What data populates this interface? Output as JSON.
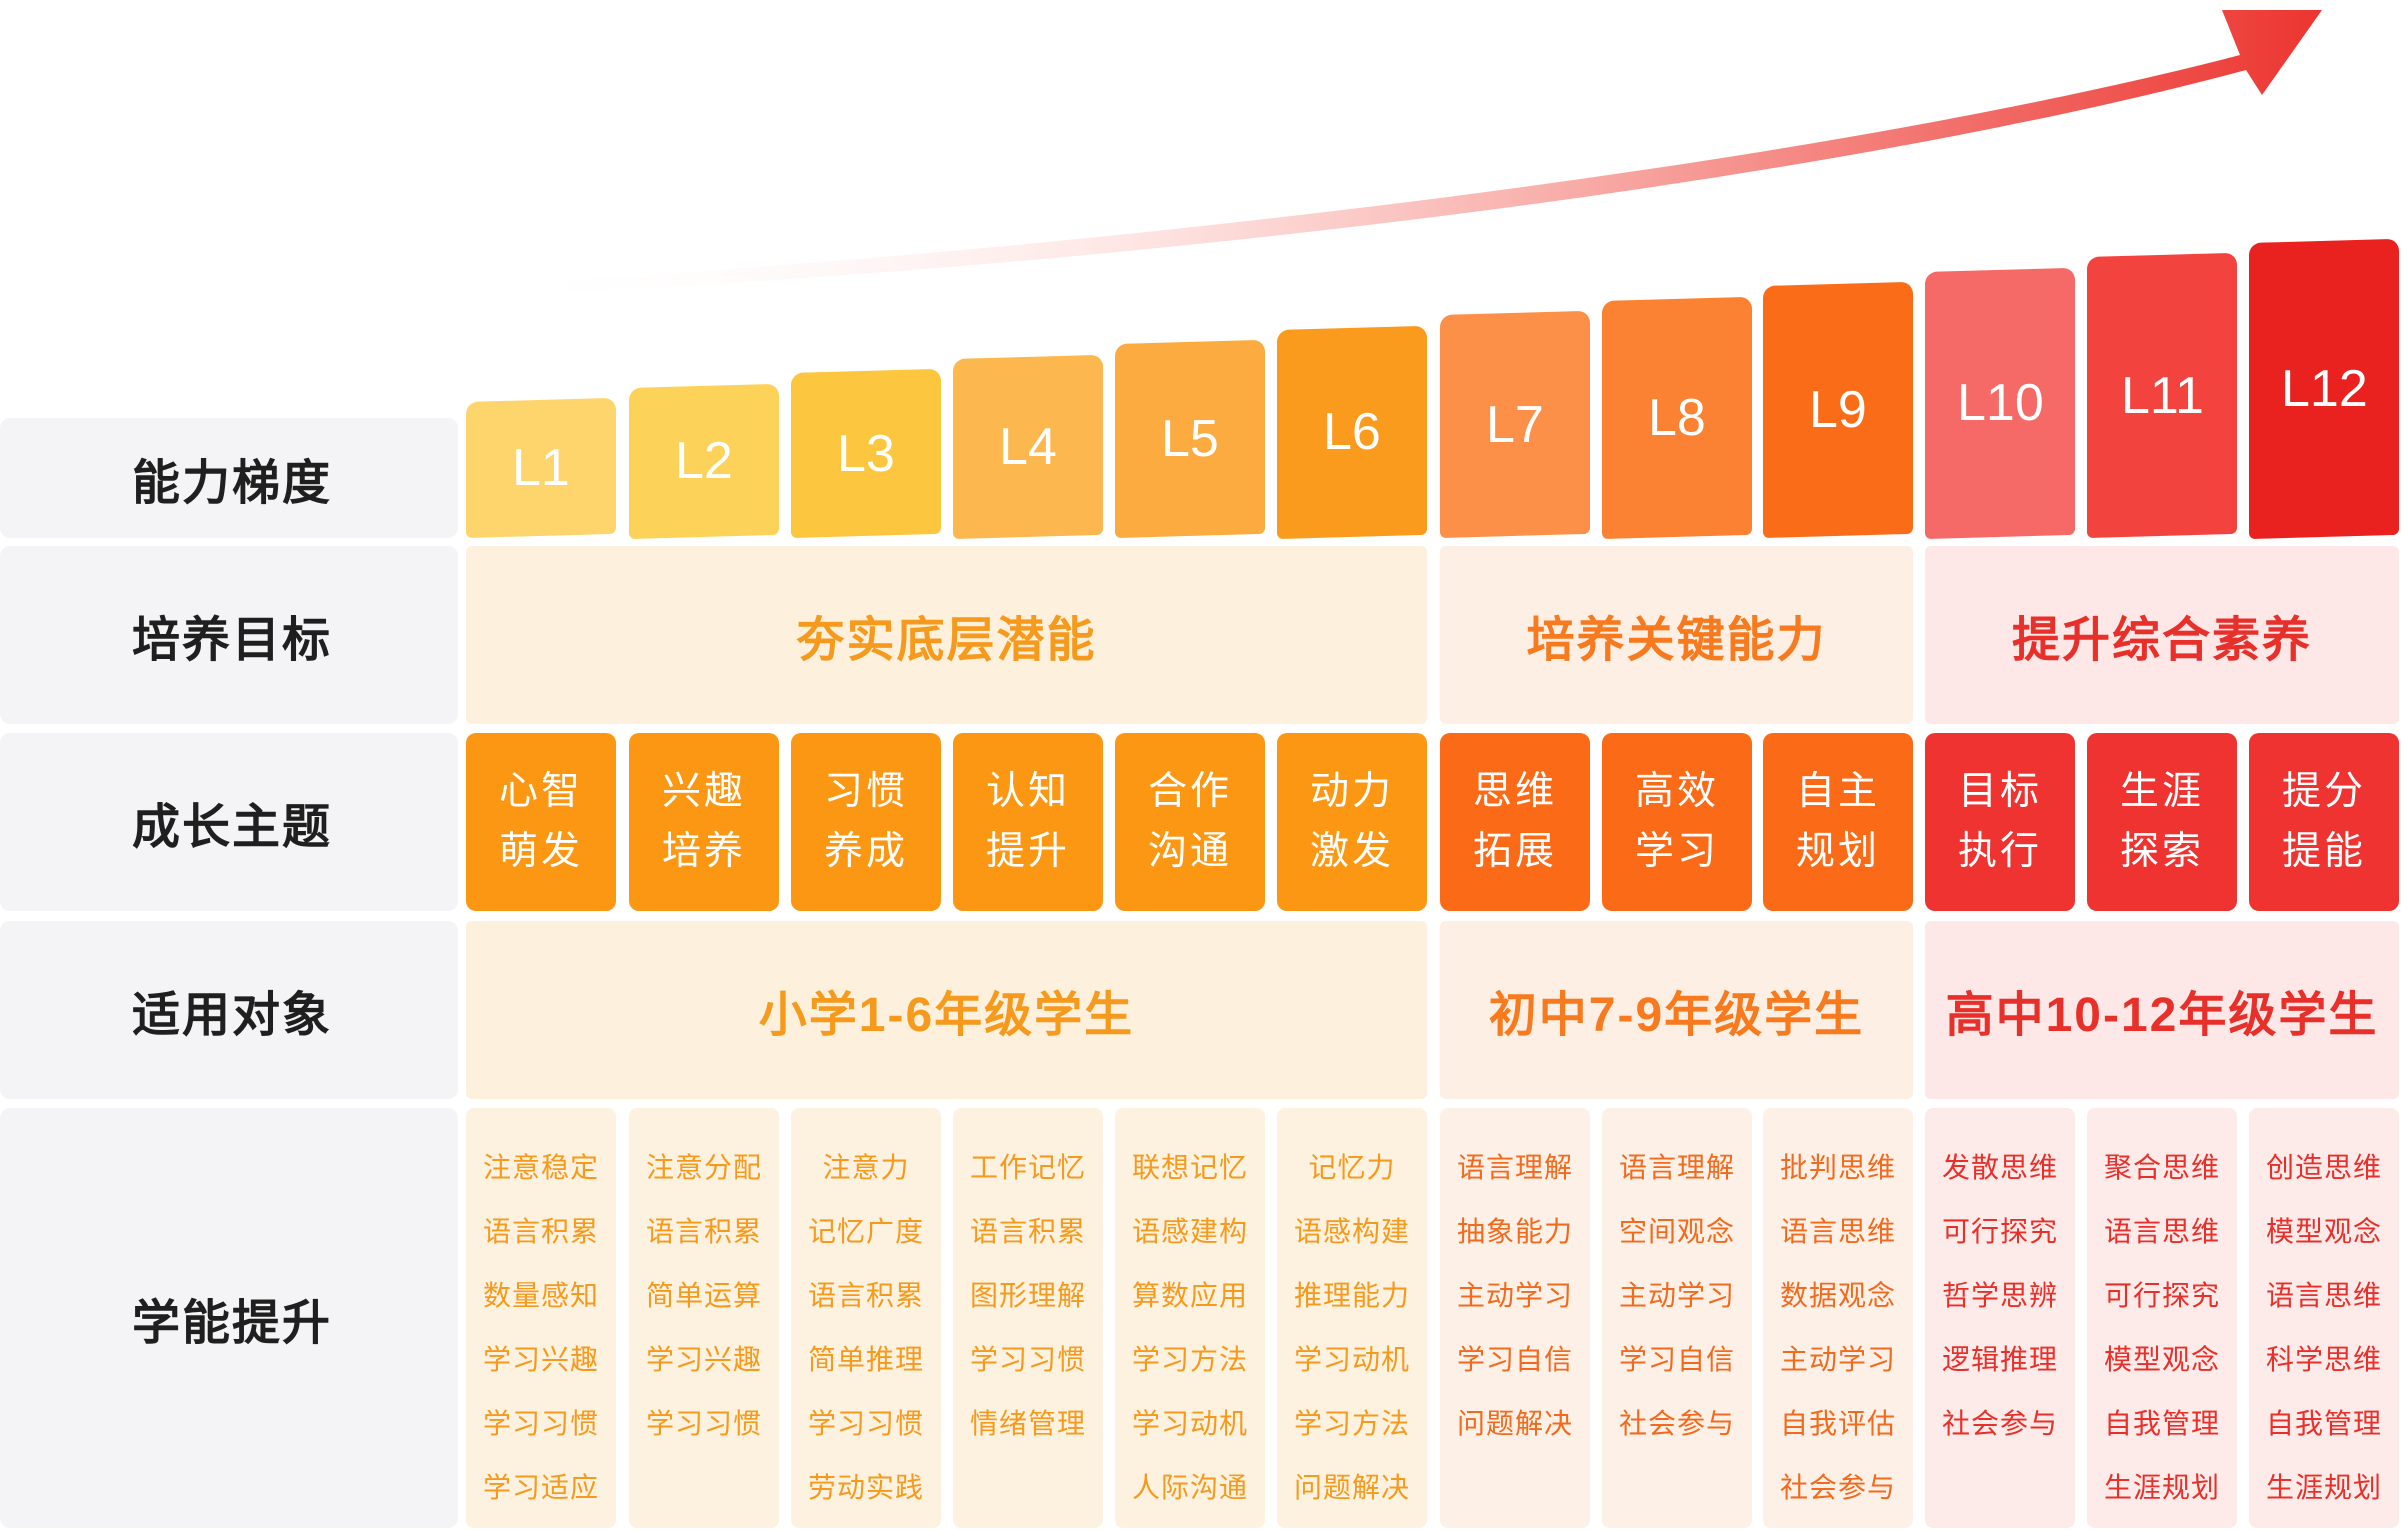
{
  "rows": {
    "ability": "能力梯度",
    "goal": "培养目标",
    "theme": "成长主题",
    "audience": "适用对象",
    "skills": "学能提升"
  },
  "levels": [
    {
      "label": "L1",
      "color": "#fdd56c"
    },
    {
      "label": "L2",
      "color": "#fdd259"
    },
    {
      "label": "L3",
      "color": "#fcc63e"
    },
    {
      "label": "L4",
      "color": "#fcb84e"
    },
    {
      "label": "L5",
      "color": "#fbab3f"
    },
    {
      "label": "L6",
      "color": "#fb9b1e"
    },
    {
      "label": "L7",
      "color": "#fc9049"
    },
    {
      "label": "L8",
      "color": "#fb8232"
    },
    {
      "label": "L9",
      "color": "#fb6c18"
    },
    {
      "label": "L10",
      "color": "#f56a66"
    },
    {
      "label": "L11",
      "color": "#f2433f"
    },
    {
      "label": "L12",
      "color": "#e9221f"
    }
  ],
  "goals": [
    {
      "label": "夯实底层潜能",
      "color": "#f59a1c",
      "bg": "#fdf0dd"
    },
    {
      "label": "培养关键能力",
      "color": "#f77a1f",
      "bg": "#fdefe3"
    },
    {
      "label": "提升综合素养",
      "color": "#e8302b",
      "bg": "#fde8e7"
    }
  ],
  "themes": [
    {
      "label": "心智\n萌发",
      "color": "#fb9712"
    },
    {
      "label": "兴趣\n培养",
      "color": "#fb9712"
    },
    {
      "label": "习惯\n养成",
      "color": "#fb9712"
    },
    {
      "label": "认知\n提升",
      "color": "#fb9712"
    },
    {
      "label": "合作\n沟通",
      "color": "#fb9712"
    },
    {
      "label": "动力\n激发",
      "color": "#fb9712"
    },
    {
      "label": "思维\n拓展",
      "color": "#fb6a16"
    },
    {
      "label": "高效\n学习",
      "color": "#fb6a16"
    },
    {
      "label": "自主\n规划",
      "color": "#fb6a16"
    },
    {
      "label": "目标\n执行",
      "color": "#ee3331"
    },
    {
      "label": "生涯\n探索",
      "color": "#ee3331"
    },
    {
      "label": "提分\n提能",
      "color": "#ee3331"
    }
  ],
  "audiences": [
    {
      "label": "小学1-6年级学生",
      "color": "#f59a1c",
      "bg": "#fdf0dd"
    },
    {
      "label": "初中7-9年级学生",
      "color": "#f77a1f",
      "bg": "#fdefe3"
    },
    {
      "label": "高中10-12年级学生",
      "color": "#e8302b",
      "bg": "#fde8e7"
    }
  ],
  "skills": [
    {
      "items": [
        "注意稳定",
        "语言积累",
        "数量感知",
        "学习兴趣",
        "学习习惯",
        "学习适应"
      ],
      "color": "#f59a1c",
      "bg": "#fdf1e0"
    },
    {
      "items": [
        "注意分配",
        "语言积累",
        "简单运算",
        "学习兴趣",
        "学习习惯"
      ],
      "color": "#f59a1c",
      "bg": "#fdf1e0"
    },
    {
      "items": [
        "注意力",
        "记忆广度",
        "语言积累",
        "简单推理",
        "学习习惯",
        "劳动实践"
      ],
      "color": "#f59a1c",
      "bg": "#fdf1e0"
    },
    {
      "items": [
        "工作记忆",
        "语言积累",
        "图形理解",
        "学习习惯",
        "情绪管理"
      ],
      "color": "#f59a1c",
      "bg": "#fdf1e0"
    },
    {
      "items": [
        "联想记忆",
        "语感建构",
        "算数应用",
        "学习方法",
        "学习动机",
        "人际沟通"
      ],
      "color": "#f59a1c",
      "bg": "#fdf1e0"
    },
    {
      "items": [
        "记忆力",
        "语感构建",
        "推理能力",
        "学习动机",
        "学习方法",
        "问题解决"
      ],
      "color": "#f59a1c",
      "bg": "#fdf1e0"
    },
    {
      "items": [
        "语言理解",
        "抽象能力",
        "主动学习",
        "学习自信",
        "问题解决"
      ],
      "color": "#f26a1d",
      "bg": "#fdf0e6"
    },
    {
      "items": [
        "语言理解",
        "空间观念",
        "主动学习",
        "学习自信",
        "社会参与"
      ],
      "color": "#f26a1d",
      "bg": "#fdf0e6"
    },
    {
      "items": [
        "批判思维",
        "语言思维",
        "数据观念",
        "主动学习",
        "自我评估",
        "社会参与"
      ],
      "color": "#f26a1d",
      "bg": "#fdf0e6"
    },
    {
      "items": [
        "发散思维",
        "可行探究",
        "哲学思辨",
        "逻辑推理",
        "社会参与"
      ],
      "color": "#e8302b",
      "bg": "#fdebea"
    },
    {
      "items": [
        "聚合思维",
        "语言思维",
        "可行探究",
        "模型观念",
        "自我管理",
        "生涯规划"
      ],
      "color": "#e8302b",
      "bg": "#fdebea"
    },
    {
      "items": [
        "创造思维",
        "模型观念",
        "语言思维",
        "科学思维",
        "自我管理",
        "生涯规划"
      ],
      "color": "#e8302b",
      "bg": "#fdebea"
    }
  ]
}
